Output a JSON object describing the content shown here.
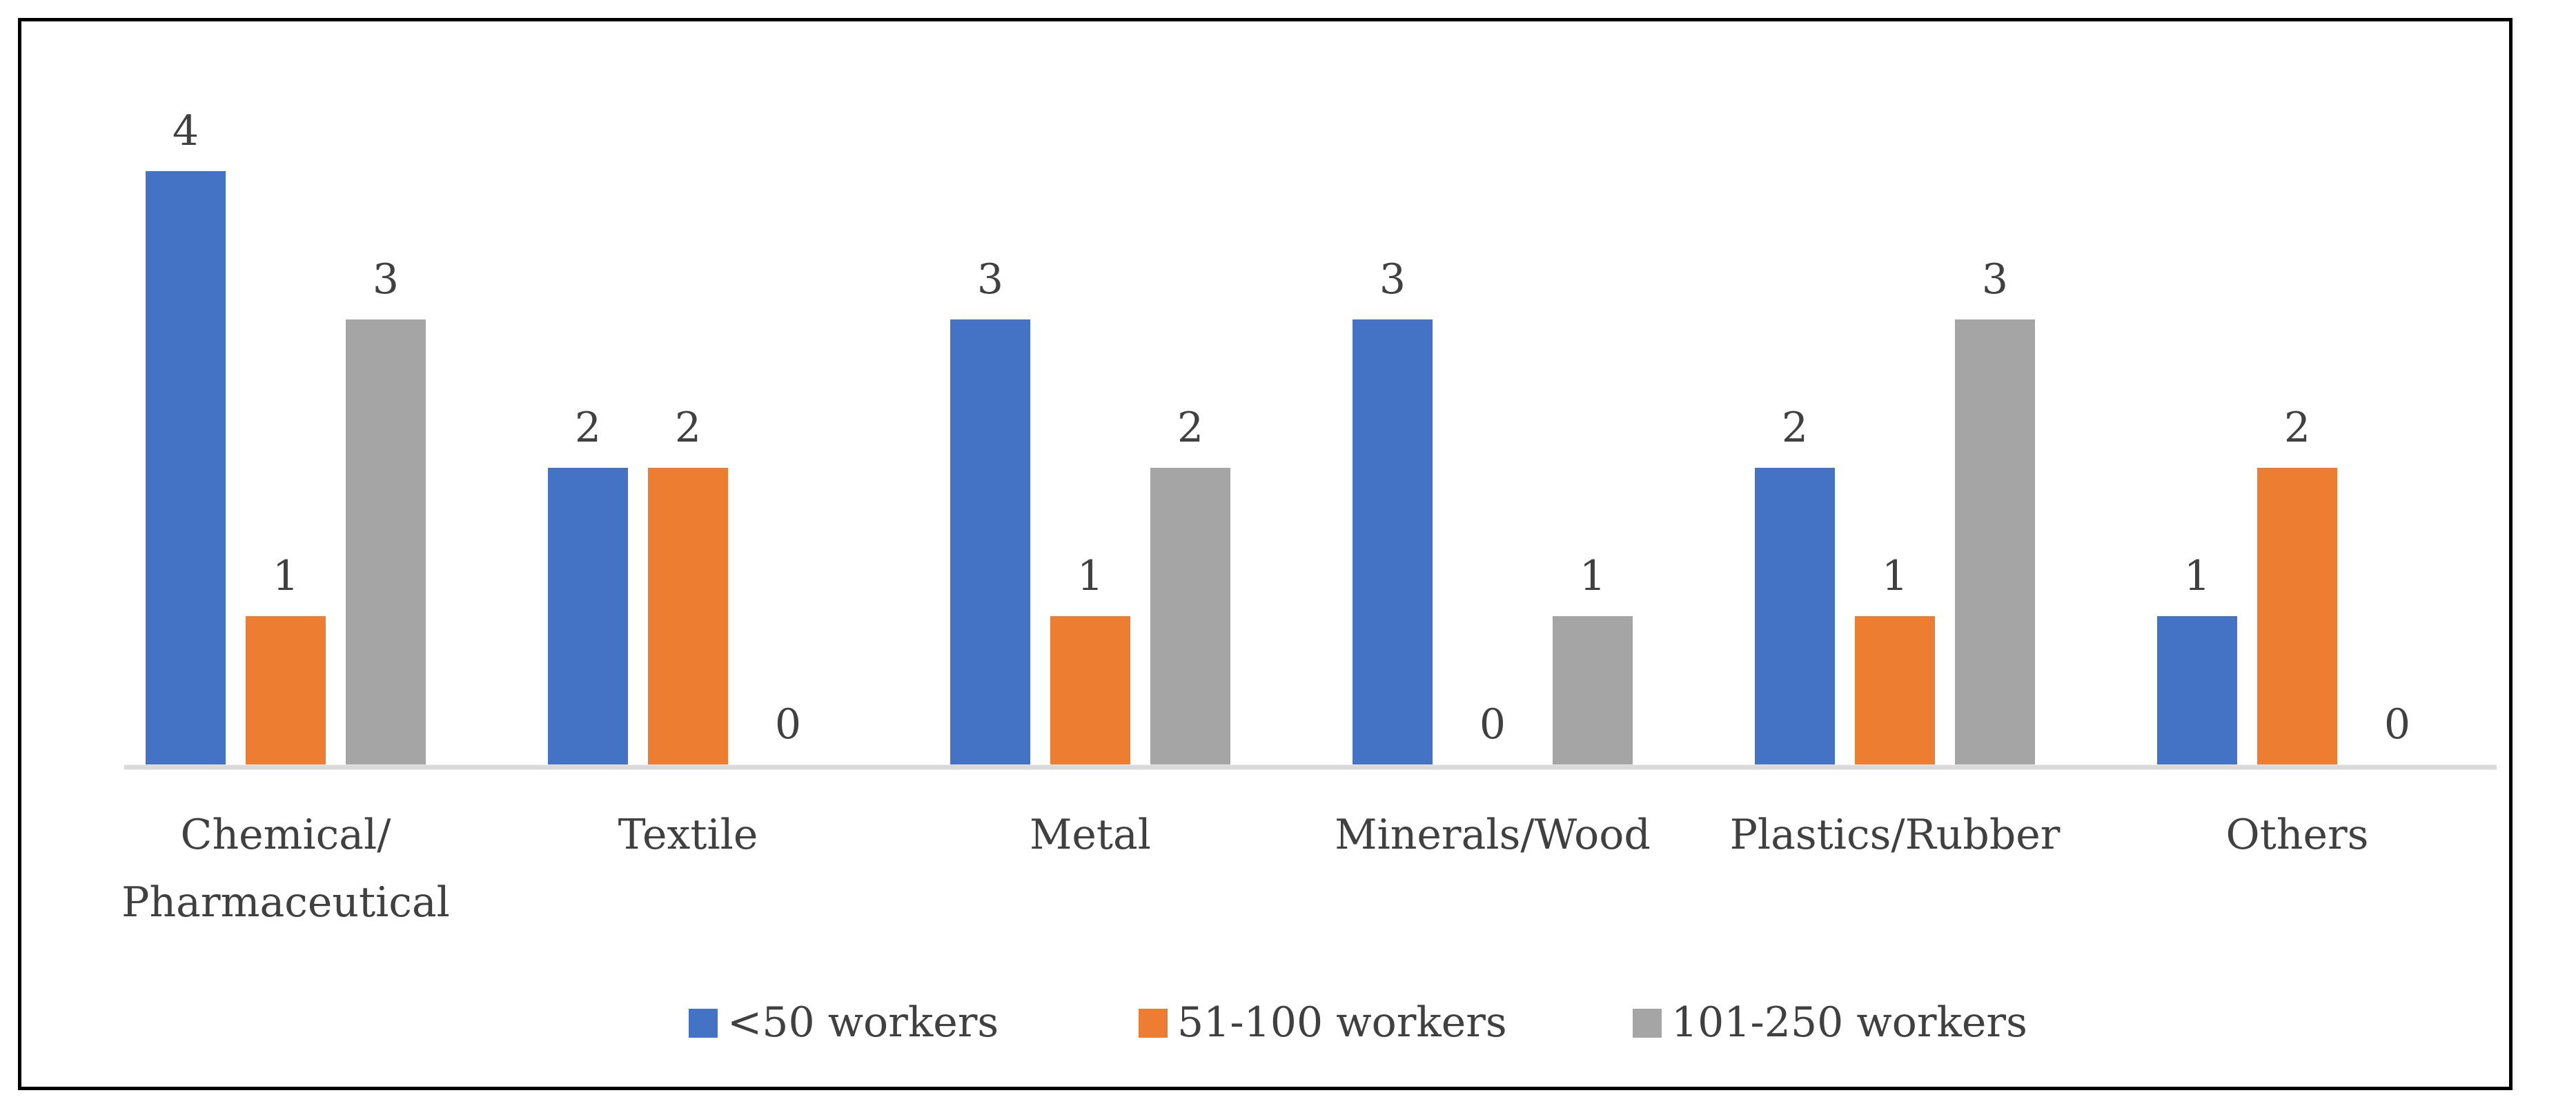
{
  "chart_data": {
    "type": "bar",
    "title": "",
    "xlabel": "",
    "ylabel": "",
    "ylim": [
      0,
      4
    ],
    "grid": false,
    "legend_position": "bottom",
    "categories": [
      [
        "Chemical/",
        "Pharmaceutical"
      ],
      [
        "Textile"
      ],
      [
        "Metal"
      ],
      [
        "Minerals/Wood"
      ],
      [
        "Plastics/Rubber"
      ],
      [
        "Others"
      ]
    ],
    "series": [
      {
        "name": "<50 workers",
        "color": "#4472C4",
        "values": [
          4,
          2,
          3,
          3,
          2,
          1
        ]
      },
      {
        "name": "51-100 workers",
        "color": "#ED7D31",
        "values": [
          1,
          2,
          1,
          0,
          1,
          2
        ]
      },
      {
        "name": "101-250 workers",
        "color": "#A5A5A5",
        "values": [
          3,
          0,
          2,
          1,
          3,
          0
        ]
      }
    ]
  }
}
